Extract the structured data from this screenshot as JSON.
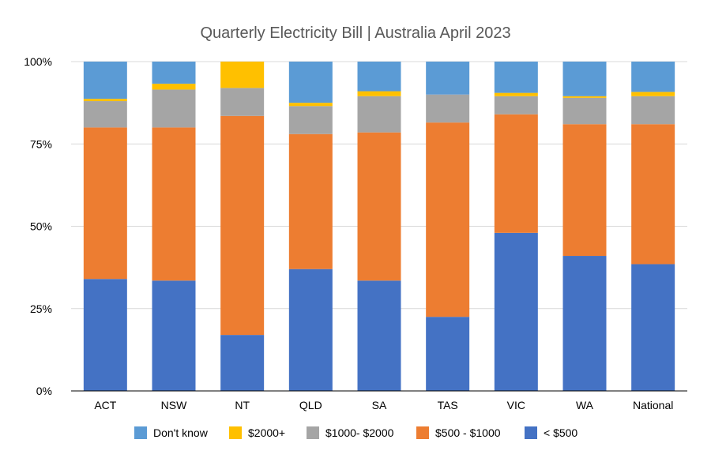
{
  "chart_data": {
    "type": "bar",
    "stacked": true,
    "percent_stacked": true,
    "title": "Quarterly Electricity Bill | Australia April 2023",
    "xlabel": "",
    "ylabel": "",
    "categories": [
      "ACT",
      "NSW",
      "NT",
      "QLD",
      "SA",
      "TAS",
      "VIC",
      "WA",
      "National"
    ],
    "ylim": [
      0,
      100
    ],
    "yticks": [
      0,
      25,
      50,
      75,
      100
    ],
    "ytick_labels": [
      "0%",
      "25%",
      "50%",
      "75%",
      "100%"
    ],
    "grid": true,
    "legend_position": "bottom",
    "series": [
      {
        "name": "< $500",
        "color": "#4472C4",
        "values": [
          34,
          33.5,
          17,
          37,
          33.5,
          22.5,
          48,
          41,
          38.5
        ]
      },
      {
        "name": "$500 - $1000",
        "color": "#ED7D31",
        "values": [
          46,
          46.5,
          66.5,
          41,
          45,
          59,
          36,
          40,
          42.5
        ]
      },
      {
        "name": "$1000- $2000",
        "color": "#A5A5A5",
        "values": [
          8,
          11.5,
          8.5,
          8.5,
          11,
          8.5,
          5.5,
          8,
          8.5
        ]
      },
      {
        "name": "$2000+",
        "color": "#FFC000",
        "values": [
          0.7,
          1.8,
          8,
          1,
          1.5,
          0,
          1,
          0.5,
          1.3
        ]
      },
      {
        "name": "Don't know",
        "color": "#5B9BD5",
        "values": [
          11.3,
          6.7,
          0,
          12.5,
          9,
          10,
          9.5,
          10.5,
          9.2
        ]
      }
    ],
    "legend_order": [
      "Don't know",
      "$2000+",
      "$1000- $2000",
      "$500 - $1000",
      "< $500"
    ]
  }
}
